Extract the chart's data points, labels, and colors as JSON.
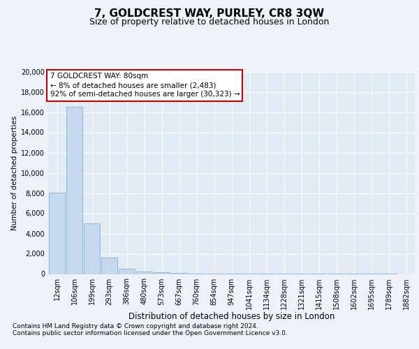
{
  "title": "7, GOLDCREST WAY, PURLEY, CR8 3QW",
  "subtitle": "Size of property relative to detached houses in London",
  "xlabel": "Distribution of detached houses by size in London",
  "ylabel": "Number of detached properties",
  "bar_color": "#c5d8ed",
  "bar_edge_color": "#6faad4",
  "annotation_box_color": "#ffffff",
  "annotation_box_edge": "#cc0000",
  "annotation_line1": "7 GOLDCREST WAY: 80sqm",
  "annotation_line2": "← 8% of detached houses are smaller (2,483)",
  "annotation_line3": "92% of semi-detached houses are larger (30,323) →",
  "annotation_fontsize": 7.5,
  "footer1": "Contains HM Land Registry data © Crown copyright and database right 2024.",
  "footer2": "Contains public sector information licensed under the Open Government Licence v3.0.",
  "categories": [
    "12sqm",
    "106sqm",
    "199sqm",
    "293sqm",
    "386sqm",
    "480sqm",
    "573sqm",
    "667sqm",
    "760sqm",
    "854sqm",
    "947sqm",
    "1041sqm",
    "1134sqm",
    "1228sqm",
    "1321sqm",
    "1415sqm",
    "1508sqm",
    "1602sqm",
    "1695sqm",
    "1789sqm",
    "1882sqm"
  ],
  "values": [
    8050,
    16500,
    5000,
    1600,
    500,
    250,
    150,
    100,
    30,
    5,
    2,
    1,
    1,
    1,
    1,
    1,
    1,
    1,
    1,
    1,
    0
  ],
  "ylim": [
    0,
    20000
  ],
  "yticks": [
    0,
    2000,
    4000,
    6000,
    8000,
    10000,
    12000,
    14000,
    16000,
    18000,
    20000
  ],
  "background_color": "#eef2f8",
  "plot_bg_color": "#e2eaf5",
  "grid_color": "#ffffff",
  "title_fontsize": 11,
  "subtitle_fontsize": 9,
  "xlabel_fontsize": 8.5,
  "ylabel_fontsize": 7.5,
  "tick_fontsize": 7
}
